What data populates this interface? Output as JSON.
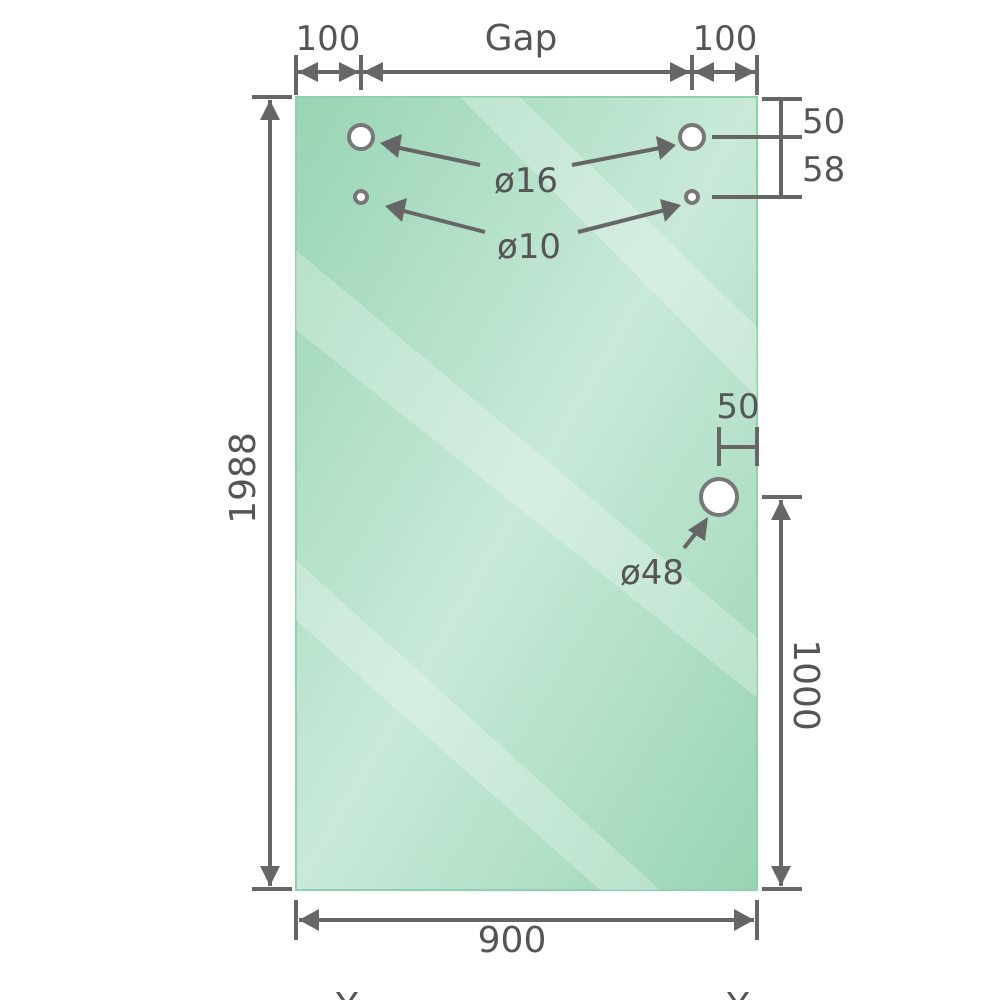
{
  "title": "",
  "colors": {
    "glass_edge": "#98d4b4",
    "glass_center": "#c9e9d9",
    "line": "#666666",
    "text": "#555555"
  },
  "dimensions": {
    "top_left_offset": "100",
    "gap": "Gap",
    "top_right_offset": "100",
    "height": "1988",
    "width": "900",
    "top_hole_from_top": "50",
    "hole_spacing": "58",
    "handle_from_edge": "50",
    "handle_height": "1000"
  },
  "holes": {
    "upper_diameter": "ø16",
    "lower_diameter": "ø10",
    "handle_diameter": "ø48"
  },
  "bottom_marks": [
    "Y",
    "Y"
  ]
}
